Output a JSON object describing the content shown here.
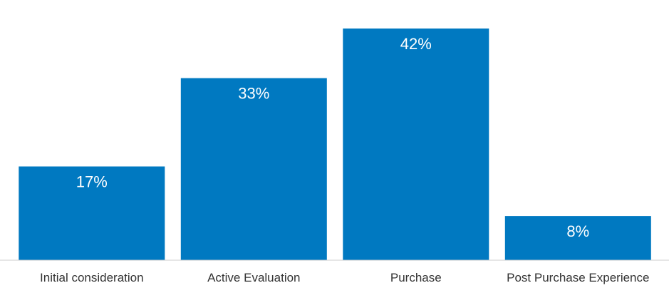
{
  "chart_data": {
    "type": "bar",
    "categories": [
      "Initial consideration",
      "Active Evaluation",
      "Purchase",
      "Post Purchase Experience"
    ],
    "values": [
      17,
      33,
      42,
      8
    ],
    "data_labels": [
      "17%",
      "33%",
      "42%",
      "8%"
    ],
    "ylim": [
      0,
      42
    ],
    "grid": false,
    "legend": "none",
    "bar_color": "#0079c1",
    "axis_color": "#cccccc"
  }
}
